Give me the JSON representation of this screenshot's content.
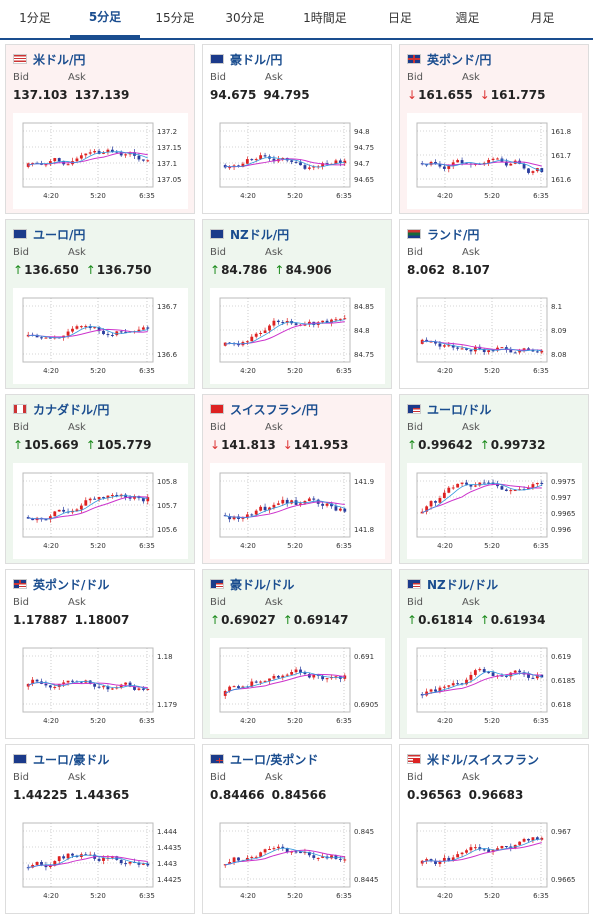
{
  "tabs": [
    "1分足",
    "5分足",
    "15分足",
    "30分足",
    "1時間足",
    "日足",
    "週足",
    "月足"
  ],
  "active_tab": 1,
  "labels": {
    "bid": "Bid",
    "ask": "Ask"
  },
  "colors": {
    "accent": "#1a4d8f",
    "up_bg": "#eef6ee",
    "down_bg": "#fdf2f2",
    "up_arrow": "#1a8a1a",
    "down_arrow": "#d33333",
    "candle_up": "#dd2222",
    "candle_down": "#2a3d9e",
    "ma": "#cc33cc",
    "ma_short": "#3399dd"
  },
  "x_ticks": [
    "4:20",
    "5:20",
    "6:35"
  ],
  "cards": [
    {
      "pair": "米ドル/円",
      "flag": "us",
      "trend": "down",
      "bid": "137.103",
      "ask": "137.139",
      "arrow": "",
      "ticks": [
        "137.2",
        "137.15",
        "137.1",
        "137.05"
      ]
    },
    {
      "pair": "豪ドル/円",
      "flag": "au",
      "trend": "flat",
      "bid": "94.675",
      "ask": "94.795",
      "arrow": "",
      "ticks": [
        "94.8",
        "94.75",
        "94.7",
        "94.65"
      ]
    },
    {
      "pair": "英ポンド/円",
      "flag": "gb",
      "trend": "down",
      "bid": "161.655",
      "ask": "161.775",
      "arrow": "down",
      "ticks": [
        "161.8",
        "161.7",
        "161.6"
      ]
    },
    {
      "pair": "ユーロ/円",
      "flag": "eu",
      "trend": "up",
      "bid": "136.650",
      "ask": "136.750",
      "arrow": "up",
      "ticks": [
        "136.7",
        "136.6"
      ]
    },
    {
      "pair": "NZドル/円",
      "flag": "nz",
      "trend": "up",
      "bid": "84.786",
      "ask": "84.906",
      "arrow": "up",
      "ticks": [
        "84.85",
        "84.8",
        "84.75"
      ]
    },
    {
      "pair": "ランド/円",
      "flag": "za",
      "trend": "flat",
      "bid": "8.062",
      "ask": "8.107",
      "arrow": "",
      "ticks": [
        "8.1",
        "8.09",
        "8.08"
      ]
    },
    {
      "pair": "カナダドル/円",
      "flag": "ca",
      "trend": "up",
      "bid": "105.669",
      "ask": "105.779",
      "arrow": "up",
      "ticks": [
        "105.8",
        "105.7",
        "105.6"
      ]
    },
    {
      "pair": "スイスフラン/円",
      "flag": "ch",
      "trend": "down",
      "bid": "141.813",
      "ask": "141.953",
      "arrow": "down",
      "ticks": [
        "141.9",
        "141.8"
      ]
    },
    {
      "pair": "ユーロ/ドル",
      "flag": "eu",
      "flag2": "us",
      "trend": "up",
      "bid": "0.99642",
      "ask": "0.99732",
      "arrow": "up",
      "ticks": [
        "0.9975",
        "0.997",
        "0.9965",
        "0.996"
      ]
    },
    {
      "pair": "英ポンド/ドル",
      "flag": "gb",
      "flag2": "us",
      "trend": "flat",
      "bid": "1.17887",
      "ask": "1.18007",
      "arrow": "",
      "ticks": [
        "1.18",
        "1.179"
      ]
    },
    {
      "pair": "豪ドル/ドル",
      "flag": "au",
      "flag2": "us",
      "trend": "up",
      "bid": "0.69027",
      "ask": "0.69147",
      "arrow": "up",
      "ticks": [
        "0.691",
        "0.6905"
      ]
    },
    {
      "pair": "NZドル/ドル",
      "flag": "nz",
      "flag2": "us",
      "trend": "up",
      "bid": "0.61814",
      "ask": "0.61934",
      "arrow": "up",
      "ticks": [
        "0.619",
        "0.6185",
        "0.618"
      ]
    },
    {
      "pair": "ユーロ/豪ドル",
      "flag": "eu",
      "flag2": "au",
      "trend": "flat",
      "bid": "1.44225",
      "ask": "1.44365",
      "arrow": "",
      "ticks": [
        "1.444",
        "1.4435",
        "1.443",
        "1.4425"
      ]
    },
    {
      "pair": "ユーロ/英ポンド",
      "flag": "eu",
      "flag2": "gb",
      "trend": "flat",
      "bid": "0.84466",
      "ask": "0.84566",
      "arrow": "",
      "ticks": [
        "0.845",
        "0.8445"
      ]
    },
    {
      "pair": "米ドル/スイスフラン",
      "flag": "us",
      "flag2": "ch",
      "trend": "flat",
      "bid": "0.96563",
      "ask": "0.96683",
      "arrow": "",
      "ticks": [
        "0.967",
        "0.9665"
      ]
    }
  ]
}
